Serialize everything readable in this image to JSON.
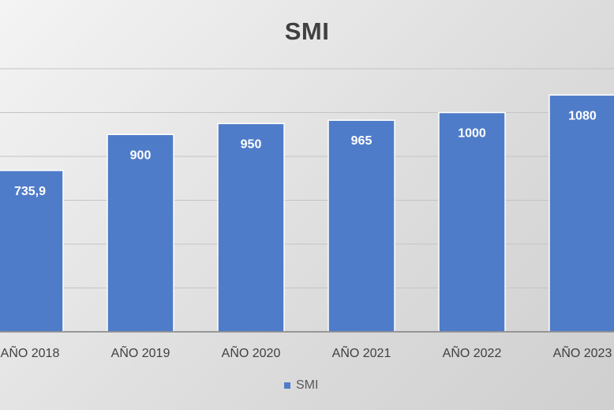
{
  "chart_data": {
    "type": "bar",
    "title": "SMI",
    "categories": [
      "AÑO 2018",
      "AÑO 2019",
      "AÑO 2020",
      "AÑO 2021",
      "AÑO 2022",
      "AÑO 2023"
    ],
    "series": [
      {
        "name": "SMI",
        "values": [
          735.9,
          900,
          950,
          965,
          1000,
          1080
        ],
        "data_labels": [
          "735,9",
          "900",
          "950",
          "965",
          "1000",
          "1080"
        ],
        "color": "#4f7cc9"
      }
    ],
    "xlabel": "",
    "ylabel": "",
    "ylim": [
      0,
      1200
    ],
    "grid": true,
    "legend_position": "bottom",
    "colors": {
      "bar": "#4f7cc9",
      "data_label": "#ffffff",
      "axis_label": "#404040",
      "gridline": "#c4c4c4",
      "axis": "#7f7f7f"
    }
  }
}
